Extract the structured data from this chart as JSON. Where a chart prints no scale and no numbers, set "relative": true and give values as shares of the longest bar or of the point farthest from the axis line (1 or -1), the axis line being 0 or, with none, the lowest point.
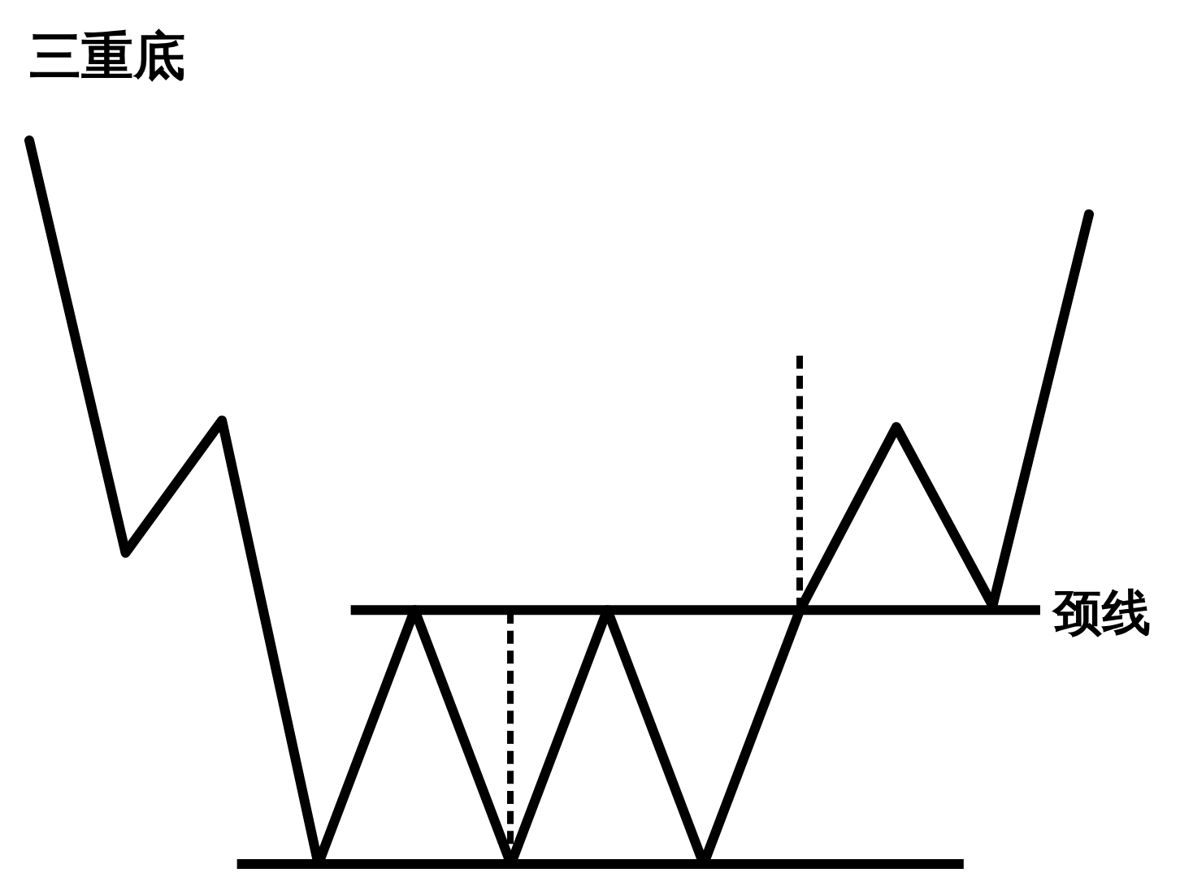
{
  "chart_data": {
    "type": "line",
    "title": "三重底",
    "relative": true,
    "categories": [
      null,
      null,
      null,
      null,
      null,
      null,
      null,
      null,
      null,
      null,
      null,
      null
    ],
    "series": [
      {
        "color": "#000000",
        "values": [
          1.0,
          0.43,
          0.613,
          0,
          0.351,
          0,
          0.351,
          0,
          0.351,
          0.604,
          0.357,
          0.898
        ]
      }
    ],
    "ref_lines": [
      {
        "axis": "y",
        "value": 0.351,
        "label": "颈线",
        "color": "#000000"
      },
      {
        "axis": "y",
        "value": 0,
        "color": "#000000"
      }
    ],
    "marker": "none",
    "line_style": "solid",
    "grid": false,
    "legend": false
  }
}
